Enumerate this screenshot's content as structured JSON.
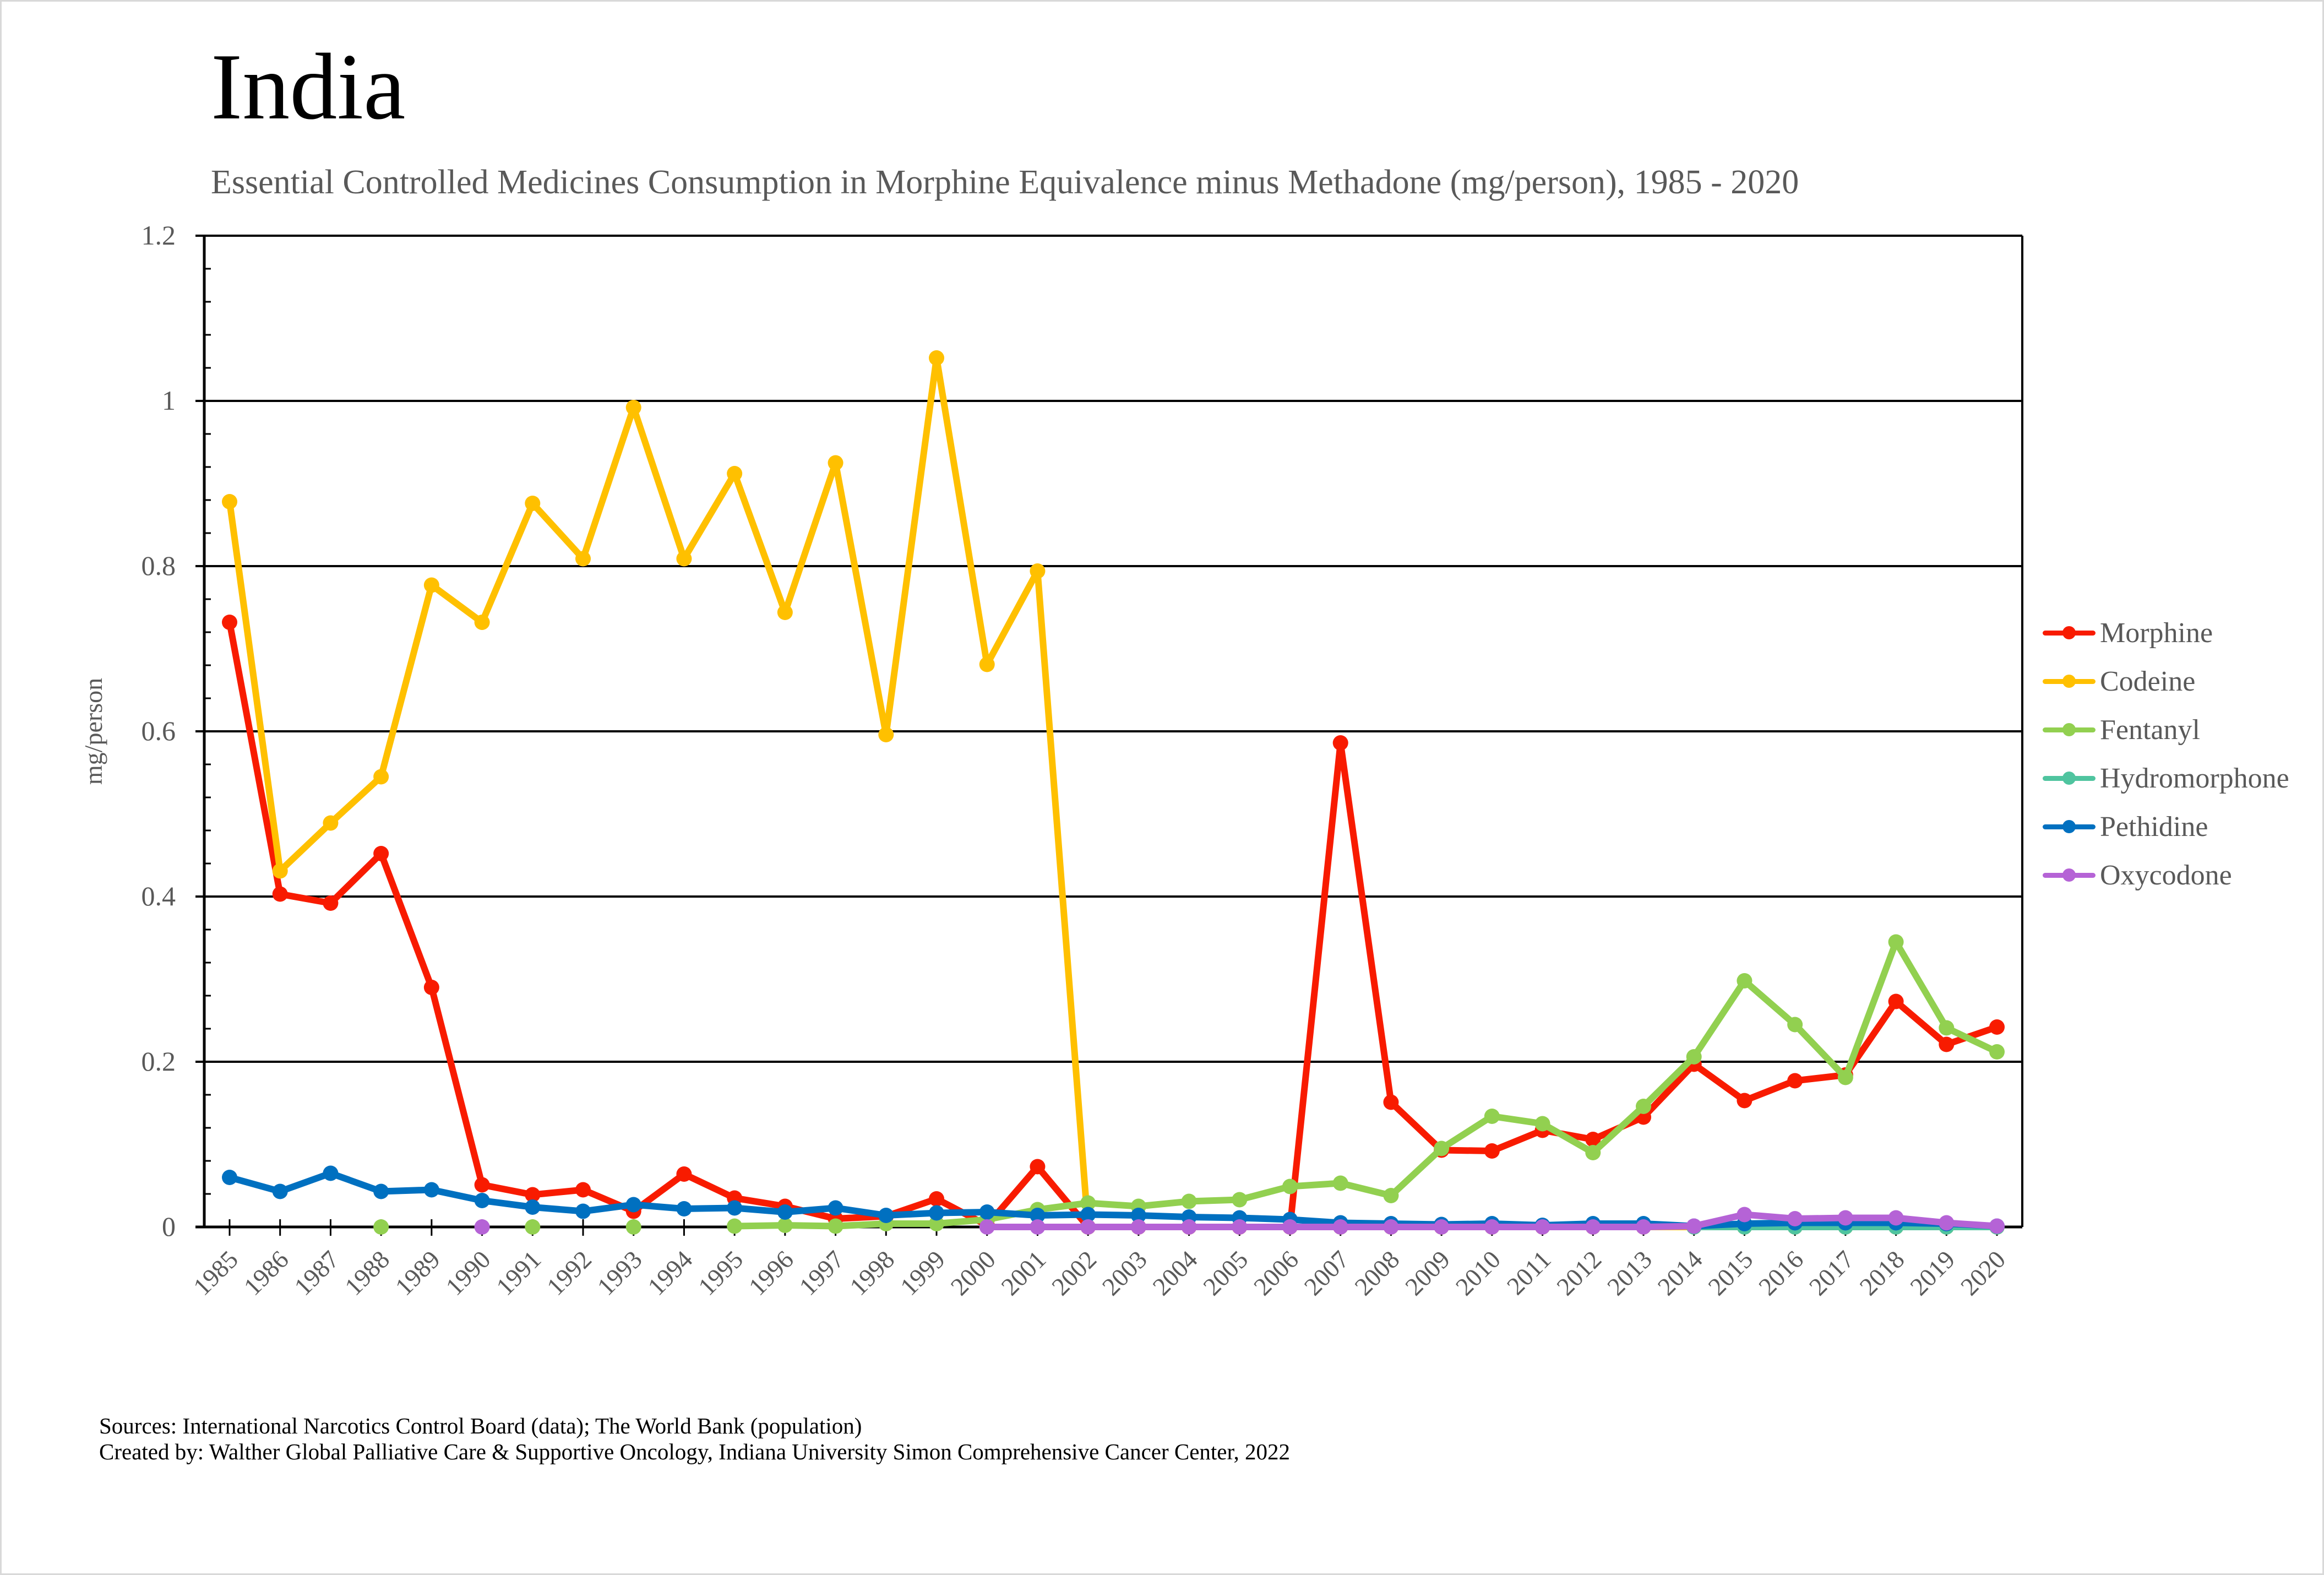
{
  "header": {
    "title": "India",
    "subtitle": "Essential Controlled Medicines Consumption in Morphine Equivalence minus Methadone (mg/person), 1985 - 2020"
  },
  "footer": {
    "sources": "Sources: International Narcotics Control Board (data); The World Bank (population)",
    "created_by": "Created by: Walther Global Palliative Care & Supportive Oncology, Indiana University Simon Comprehensive Cancer Center, 2022"
  },
  "chart_data": {
    "type": "line",
    "title": "India",
    "subtitle": "Essential Controlled Medicines Consumption in Morphine Equivalence minus Methadone (mg/person), 1985 - 2020",
    "xlabel": "",
    "ylabel": "mg/person",
    "ylim": [
      0,
      1.2
    ],
    "yticks": [
      "0",
      "0.2",
      "0.4",
      "0.6",
      "0.8",
      "1",
      "1.2"
    ],
    "ytick_values": [
      0,
      0.2,
      0.4,
      0.6,
      0.8,
      1,
      1.2
    ],
    "grid": true,
    "legend_position": "right",
    "x": [
      "1985",
      "1986",
      "1987",
      "1988",
      "1989",
      "1990",
      "1991",
      "1992",
      "1993",
      "1994",
      "1995",
      "1996",
      "1997",
      "1998",
      "1999",
      "2000",
      "2001",
      "2002",
      "2003",
      "2004",
      "2005",
      "2006",
      "2007",
      "2008",
      "2009",
      "2010",
      "2011",
      "2012",
      "2013",
      "2014",
      "2015",
      "2016",
      "2017",
      "2018",
      "2019",
      "2020"
    ],
    "series": [
      {
        "name": "Morphine",
        "color": "#F81B00",
        "values": [
          0.732,
          0.403,
          0.392,
          0.452,
          0.29,
          0.051,
          0.039,
          0.045,
          0.019,
          0.064,
          0.035,
          0.025,
          0.01,
          0.013,
          0.034,
          0.002,
          0.073,
          0.0,
          0.0,
          0.0,
          0.0,
          0.0,
          0.586,
          0.151,
          0.093,
          0.092,
          0.117,
          0.106,
          0.133,
          0.197,
          0.153,
          0.177,
          0.184,
          0.273,
          0.221,
          0.242
        ]
      },
      {
        "name": "Codeine",
        "color": "#FFC000",
        "values": [
          0.878,
          0.431,
          0.489,
          0.545,
          0.777,
          0.732,
          0.876,
          0.809,
          0.992,
          0.809,
          0.912,
          0.744,
          0.925,
          0.596,
          1.052,
          0.681,
          0.794,
          0.0,
          0.0,
          0.0,
          0.0,
          0.0,
          0.0,
          0.0,
          0.0,
          0.0,
          0.0,
          0.0,
          0.0,
          0.0,
          0.0,
          0.0,
          0.0,
          0.0,
          0.0,
          0.0
        ]
      },
      {
        "name": "Fentanyl",
        "color": "#92D050",
        "values": [
          null,
          null,
          null,
          0.0,
          null,
          null,
          0.0,
          null,
          0.0,
          null,
          0.001,
          0.002,
          0.001,
          0.004,
          0.004,
          0.009,
          0.021,
          0.029,
          0.025,
          0.031,
          0.033,
          0.049,
          0.053,
          0.038,
          0.095,
          0.134,
          0.125,
          0.09,
          0.146,
          0.206,
          0.298,
          0.245,
          0.181,
          0.345,
          0.241,
          0.212
        ]
      },
      {
        "name": "Hydromorphone",
        "color": "#4FC49F",
        "values": [
          null,
          null,
          null,
          null,
          null,
          null,
          null,
          null,
          null,
          null,
          null,
          null,
          null,
          null,
          null,
          null,
          null,
          null,
          null,
          null,
          null,
          null,
          null,
          null,
          null,
          null,
          null,
          null,
          null,
          0.0,
          0.0,
          0.0,
          0.0,
          0.0,
          0.0,
          0.0
        ]
      },
      {
        "name": "Pethidine",
        "color": "#0070C0",
        "values": [
          0.06,
          0.043,
          0.065,
          0.043,
          0.045,
          0.032,
          0.024,
          0.019,
          0.027,
          0.022,
          0.023,
          0.018,
          0.023,
          0.014,
          0.017,
          0.018,
          0.014,
          0.015,
          0.014,
          0.012,
          0.011,
          0.009,
          0.005,
          0.004,
          0.003,
          0.004,
          0.002,
          0.004,
          0.004,
          0.001,
          0.004,
          0.005,
          0.005,
          0.005,
          0.004,
          0.001
        ]
      },
      {
        "name": "Oxycodone",
        "color": "#B563D6",
        "values": [
          null,
          null,
          null,
          null,
          null,
          0.0,
          null,
          null,
          null,
          null,
          null,
          null,
          null,
          null,
          null,
          0.0,
          0.0,
          0.0,
          0.0,
          0.0,
          0.0,
          0.0,
          0.0,
          0.0,
          0.0,
          0.0,
          0.0,
          0.0,
          0.0,
          0.001,
          0.015,
          0.01,
          0.011,
          0.011,
          0.005,
          0.001
        ]
      }
    ]
  }
}
